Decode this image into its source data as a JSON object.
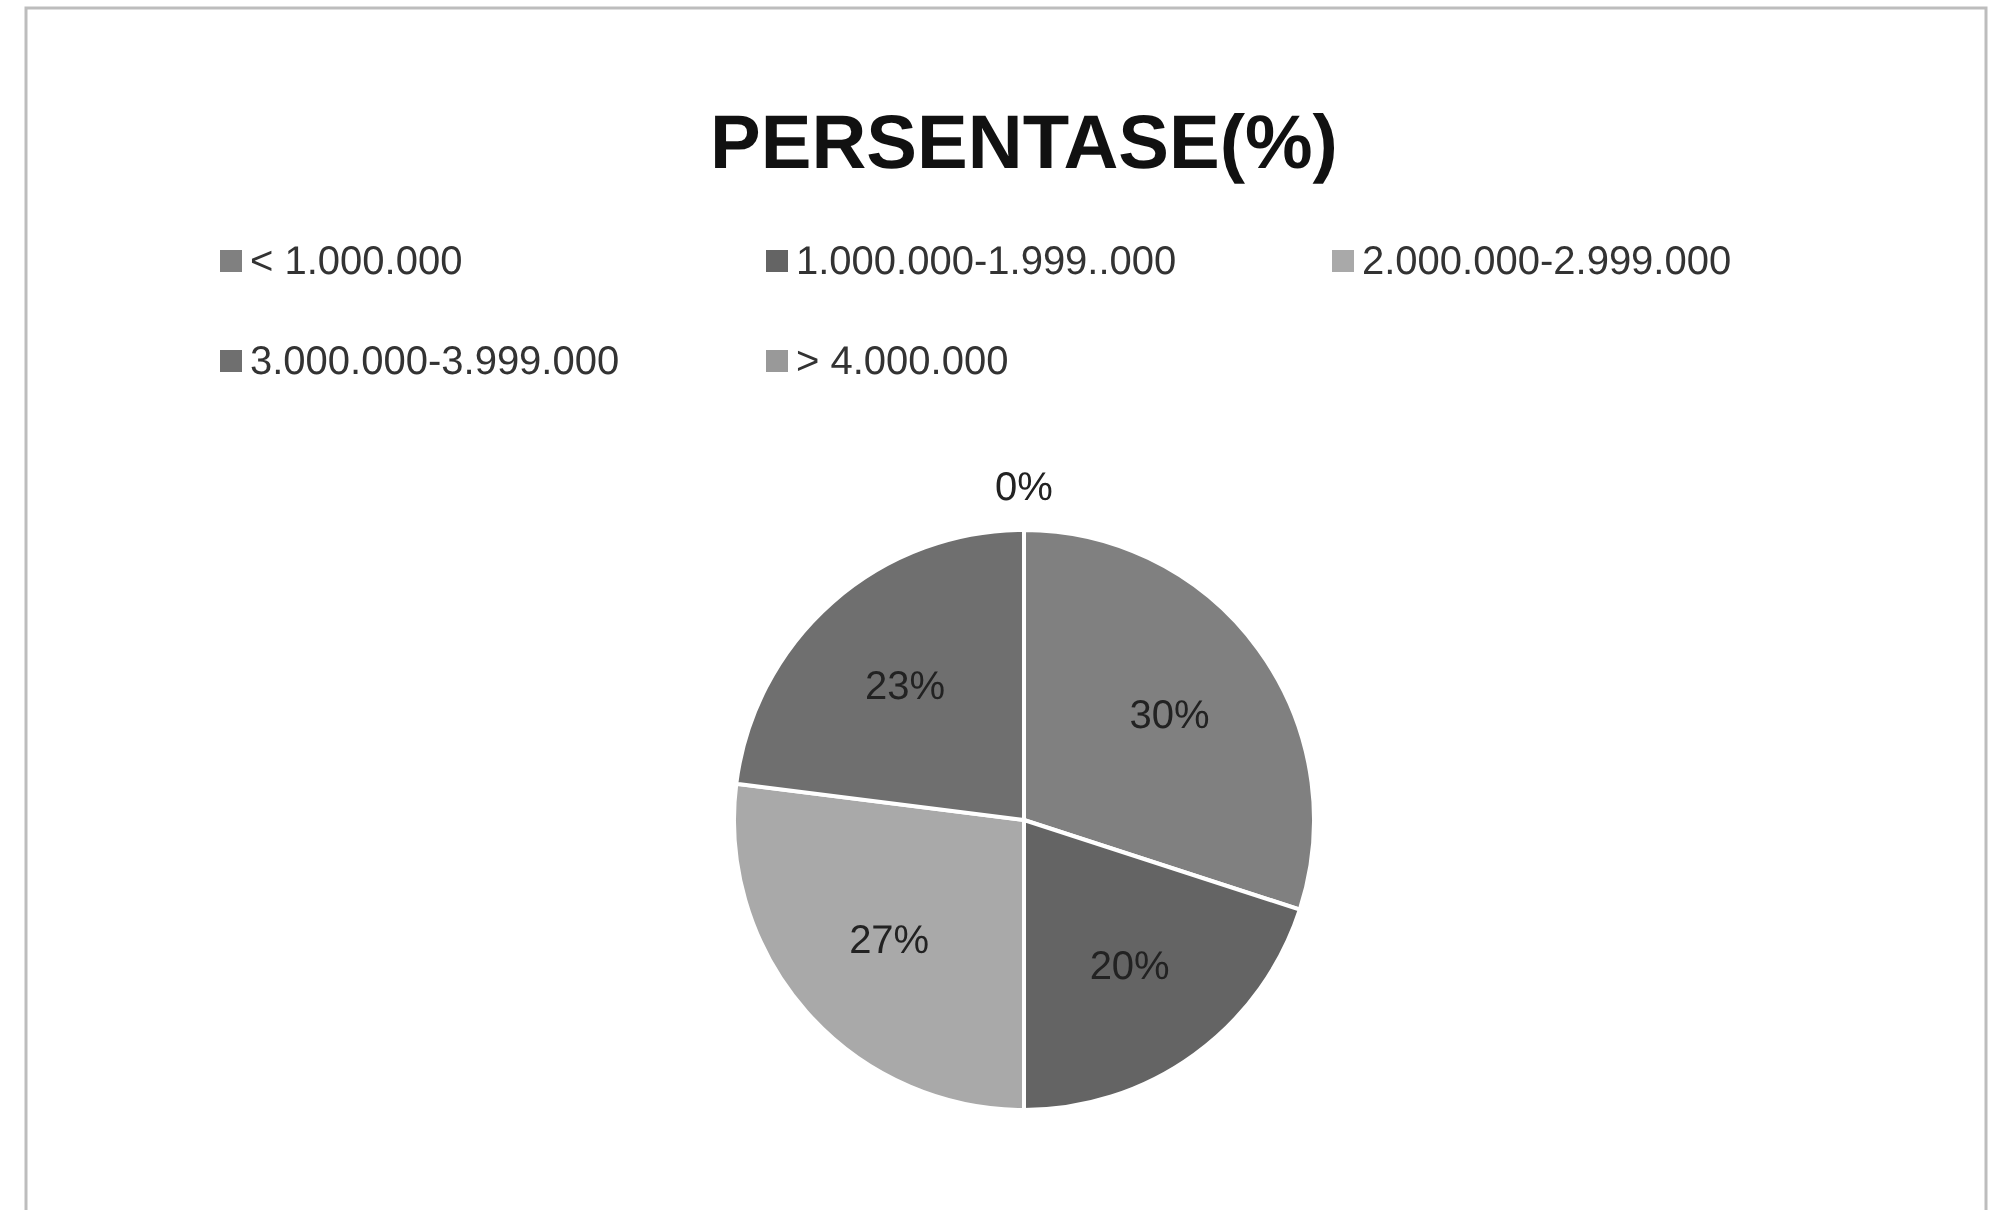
{
  "chart_data": {
    "type": "pie",
    "title": "PERSENTASE(%)",
    "categories": [
      "< 1.000.000",
      "1.000.000-1.999..000",
      "2.000.000-2.999.000",
      "3.000.000-3.999.000",
      "> 4.000.000"
    ],
    "values": [
      30,
      20,
      27,
      23,
      0
    ],
    "colors": [
      "#808080",
      "#646464",
      "#a9a9a9",
      "#6f6f6f",
      "#999999"
    ],
    "value_labels": [
      "30%",
      "20%",
      "27%",
      "23%",
      "0%"
    ],
    "legend": "top"
  }
}
